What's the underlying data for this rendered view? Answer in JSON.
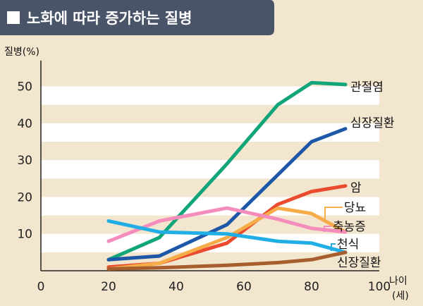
{
  "chart_data": {
    "type": "line",
    "title": "노화에 따라 증가하는 질병",
    "ylabel": "질병(%)",
    "xlabel": "나이",
    "xlabel_unit": "(세)",
    "xlim": [
      0,
      100
    ],
    "ylim": [
      0,
      57
    ],
    "xticks": [
      0,
      20,
      40,
      60,
      80,
      100
    ],
    "yticks": [
      10,
      20,
      30,
      40,
      50
    ],
    "grid": "alternating horizontal bands",
    "legend": "inline labels at right end of lines",
    "series": [
      {
        "name": "관절염",
        "color": "#12a57a",
        "x": [
          20,
          35,
          55,
          70,
          80,
          90
        ],
        "y": [
          3,
          9,
          29,
          45,
          51,
          50.5
        ]
      },
      {
        "name": "심장질환",
        "color": "#1c57a8",
        "x": [
          20,
          35,
          55,
          70,
          80,
          90
        ],
        "y": [
          3,
          4,
          12.5,
          26,
          35,
          38.5
        ]
      },
      {
        "name": "암",
        "color": "#ea4a2d",
        "x": [
          20,
          35,
          55,
          70,
          80,
          90
        ],
        "y": [
          1,
          2,
          7.5,
          18,
          21.5,
          23
        ]
      },
      {
        "name": "당뇨",
        "color": "#f7ac4a",
        "x": [
          20,
          35,
          55,
          70,
          80,
          90
        ],
        "y": [
          0.5,
          2,
          9,
          17,
          15.5,
          10.5
        ]
      },
      {
        "name": "축농증",
        "color": "#f48cbc",
        "x": [
          20,
          35,
          55,
          70,
          80,
          90
        ],
        "y": [
          8,
          13.5,
          17,
          14,
          11.5,
          10.5
        ]
      },
      {
        "name": "천식",
        "color": "#21aee5",
        "x": [
          20,
          35,
          55,
          70,
          80,
          90
        ],
        "y": [
          13.5,
          10.5,
          10,
          8,
          7.5,
          5
        ]
      },
      {
        "name": "신장질환",
        "color": "#a65e2e",
        "x": [
          20,
          35,
          55,
          70,
          80,
          90
        ],
        "y": [
          0.5,
          0.8,
          1.5,
          2.2,
          3,
          5
        ]
      }
    ]
  },
  "colors": {
    "title_bg": "#4a5469",
    "background": "#f3e6cf",
    "band": "#ffffff"
  }
}
